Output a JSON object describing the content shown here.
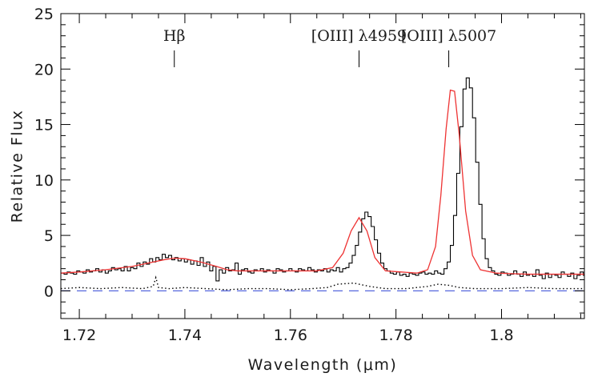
{
  "chart_data": {
    "type": "line",
    "title": "",
    "xlabel": "Wavelength (μm)",
    "ylabel": "Relative Flux",
    "xlim": [
      1.7165,
      1.8157
    ],
    "ylim": [
      -2.5,
      25
    ],
    "x_ticks": [
      1.72,
      1.74,
      1.76,
      1.78,
      1.8
    ],
    "x_tick_labels": [
      "1.72",
      "1.74",
      "1.76",
      "1.78",
      "1.8"
    ],
    "y_ticks": [
      0,
      5,
      10,
      15,
      20,
      25
    ],
    "y_tick_labels": [
      "0",
      "5",
      "10",
      "15",
      "20",
      "25"
    ],
    "grid": false,
    "line_markers": [
      {
        "label": "Hβ",
        "x": 1.738
      },
      {
        "label": "[OIII] λ4959",
        "x": 1.773
      },
      {
        "label": "[OIII] λ5007",
        "x": 1.79
      }
    ],
    "series": [
      {
        "style": "steps",
        "color": "#000000",
        "bin_width": 0.0006,
        "x_start": 1.7165,
        "values": [
          1.6,
          1.5,
          1.7,
          1.6,
          1.5,
          1.8,
          1.7,
          1.6,
          1.9,
          1.7,
          1.8,
          2.0,
          1.7,
          1.9,
          1.6,
          1.8,
          2.1,
          1.9,
          2.0,
          1.8,
          2.2,
          1.8,
          2.1,
          2.0,
          2.5,
          2.2,
          2.6,
          2.4,
          2.9,
          2.6,
          3.0,
          2.8,
          3.3,
          3.0,
          3.2,
          2.8,
          3.0,
          2.7,
          2.9,
          2.6,
          2.8,
          2.4,
          2.7,
          2.3,
          3.0,
          2.2,
          2.6,
          1.8,
          2.2,
          0.9,
          1.9,
          1.6,
          2.1,
          1.8,
          1.9,
          2.5,
          1.5,
          1.9,
          2.0,
          1.7,
          1.6,
          1.9,
          1.8,
          2.0,
          1.7,
          1.9,
          1.8,
          1.6,
          2.0,
          1.9,
          1.7,
          1.8,
          2.0,
          1.8,
          1.7,
          2.0,
          1.9,
          1.8,
          2.1,
          1.9,
          1.7,
          1.9,
          1.8,
          2.0,
          1.7,
          1.9,
          1.8,
          2.1,
          1.7,
          2.0,
          2.1,
          2.5,
          3.2,
          4.1,
          5.3,
          6.5,
          7.1,
          6.7,
          5.8,
          4.6,
          3.4,
          2.5,
          2.0,
          1.8,
          1.6,
          1.5,
          1.7,
          1.4,
          1.5,
          1.3,
          1.6,
          1.5,
          1.4,
          1.6,
          1.7,
          1.5,
          1.6,
          1.5,
          1.8,
          1.6,
          1.5,
          2.0,
          2.6,
          4.1,
          6.8,
          10.6,
          14.8,
          18.2,
          19.2,
          18.3,
          15.6,
          11.6,
          7.8,
          4.7,
          2.9,
          2.1,
          1.8,
          1.5,
          1.4,
          1.7,
          1.6,
          1.4,
          1.5,
          1.8,
          1.5,
          1.3,
          1.7,
          1.4,
          1.5,
          1.3,
          1.9,
          1.4,
          1.1,
          1.6,
          1.2,
          1.5,
          1.4,
          1.2,
          1.7,
          1.5,
          1.3,
          1.6,
          1.1,
          1.4,
          1.7,
          1.4,
          1.5,
          2.0,
          1.3,
          1.6,
          1.4,
          1.2,
          1.5,
          2.1,
          1.1,
          1.4,
          1.7,
          1.6
        ]
      },
      {
        "style": "line",
        "color": "#ee3333",
        "x": [
          1.7165,
          1.72,
          1.725,
          1.73,
          1.733,
          1.736,
          1.738,
          1.74,
          1.743,
          1.746,
          1.748,
          1.75,
          1.755,
          1.76,
          1.765,
          1.768,
          1.77,
          1.7715,
          1.773,
          1.7745,
          1.776,
          1.778,
          1.781,
          1.784,
          1.786,
          1.7875,
          1.7885,
          1.7895,
          1.7903,
          1.7911,
          1.792,
          1.7932,
          1.7945,
          1.796,
          1.799,
          1.805,
          1.81,
          1.8157
        ],
        "y": [
          1.6,
          1.7,
          1.9,
          2.2,
          2.5,
          2.8,
          2.95,
          2.9,
          2.6,
          2.2,
          1.9,
          1.8,
          1.8,
          1.8,
          1.8,
          2.1,
          3.4,
          5.4,
          6.6,
          5.4,
          3.0,
          1.8,
          1.7,
          1.6,
          1.9,
          4.0,
          8.6,
          14.6,
          18.1,
          18.0,
          14.0,
          7.2,
          3.2,
          1.9,
          1.6,
          1.5,
          1.5,
          1.5
        ]
      },
      {
        "style": "dotted",
        "color": "#000000",
        "x": [
          1.7165,
          1.72,
          1.724,
          1.728,
          1.732,
          1.734,
          1.7345,
          1.735,
          1.737,
          1.74,
          1.744,
          1.748,
          1.752,
          1.756,
          1.76,
          1.764,
          1.767,
          1.769,
          1.772,
          1.775,
          1.778,
          1.782,
          1.786,
          1.788,
          1.79,
          1.792,
          1.795,
          1.8,
          1.805,
          1.81,
          1.8157
        ],
        "y": [
          0.2,
          0.3,
          0.2,
          0.3,
          0.2,
          0.4,
          1.2,
          0.3,
          0.2,
          0.3,
          0.2,
          0.1,
          0.2,
          0.2,
          0.1,
          0.2,
          0.3,
          0.6,
          0.7,
          0.4,
          0.2,
          0.2,
          0.4,
          0.6,
          0.5,
          0.3,
          0.2,
          0.2,
          0.3,
          0.2,
          0.2
        ]
      },
      {
        "style": "dashed",
        "color": "#5566dd",
        "x": [
          1.7165,
          1.8157
        ],
        "y": [
          0,
          0
        ]
      }
    ]
  }
}
